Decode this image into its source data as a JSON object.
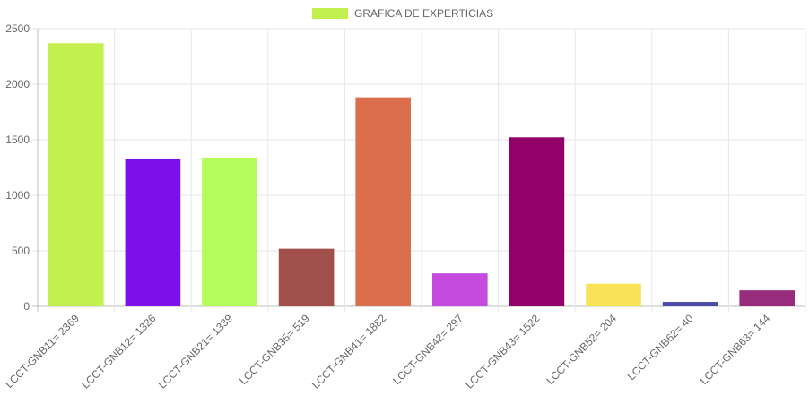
{
  "chart_data": {
    "type": "bar",
    "title": "",
    "xlabel": "",
    "ylabel": "",
    "legend": {
      "position": "top",
      "label": "GRAFICA DE EXPERTICIAS",
      "color": "#c2f04e"
    },
    "ylim": [
      0,
      2500
    ],
    "yticks": [
      0,
      500,
      1000,
      1500,
      2000,
      2500
    ],
    "grid": true,
    "categories": [
      "LCCT-GNB11= 2369",
      "LCCT-GNB12= 1326",
      "LCCT-GNB21= 1339",
      "LCCT-GNB35= 519",
      "LCCT-GNB41= 1882",
      "LCCT-GNB42= 297",
      "LCCT-GNB43= 1522",
      "LCCT-GNB52= 204",
      "LCCT-GNB62= 40",
      "LCCT-GNB63= 144"
    ],
    "series": [
      {
        "name": "GRAFICA DE EXPERTICIAS",
        "values": [
          2369,
          1326,
          1339,
          519,
          1882,
          297,
          1522,
          204,
          40,
          144
        ],
        "colors": [
          "#c2f04e",
          "#7b10ea",
          "#b3fc5b",
          "#a04f4a",
          "#da6e4d",
          "#c54ade",
          "#93006a",
          "#f8e357",
          "#4b4ca8",
          "#972c7d"
        ]
      }
    ]
  }
}
